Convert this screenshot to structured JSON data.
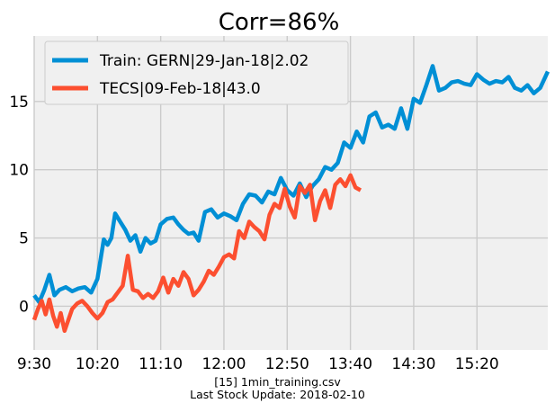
{
  "chart_data": {
    "type": "line",
    "title": "Corr=86%",
    "xlabel": "",
    "ylabel": "",
    "x_tick_labels": [
      "9:30",
      "10:20",
      "11:10",
      "12:00",
      "12:50",
      "13:40",
      "14:30",
      "15:20"
    ],
    "x_tick_minutes": [
      0,
      50,
      100,
      150,
      200,
      250,
      300,
      350
    ],
    "xlim_minutes": [
      0,
      406
    ],
    "y_ticks": [
      0,
      5,
      10,
      15
    ],
    "ylim": [
      -3.2,
      19.8
    ],
    "grid": true,
    "legend_position": "top-left",
    "series": [
      {
        "name": "Train: GERN|29-Jan-18|2.02",
        "color": "#008fd5",
        "x_minutes": [
          0,
          4,
          8,
          12,
          16,
          20,
          25,
          30,
          35,
          40,
          45,
          50,
          55,
          58,
          61,
          64,
          68,
          72,
          76,
          80,
          84,
          88,
          92,
          96,
          100,
          105,
          110,
          114,
          118,
          122,
          126,
          130,
          135,
          140,
          145,
          150,
          155,
          160,
          165,
          170,
          175,
          180,
          185,
          190,
          195,
          200,
          205,
          210,
          215,
          220,
          225,
          230,
          235,
          240,
          245,
          250,
          255,
          260,
          265,
          270,
          275,
          280,
          285,
          290,
          295,
          300,
          305,
          310,
          315,
          320,
          325,
          330,
          335,
          340,
          345,
          350,
          355,
          360,
          365,
          370,
          375,
          380,
          385,
          390,
          395,
          400,
          406
        ],
        "values": [
          0.8,
          0.3,
          1.2,
          2.3,
          0.8,
          1.2,
          1.4,
          1.1,
          1.3,
          1.4,
          1.0,
          2.0,
          4.9,
          4.5,
          5.0,
          6.8,
          6.2,
          5.6,
          4.8,
          5.2,
          4.0,
          5.0,
          4.6,
          4.8,
          6.0,
          6.4,
          6.5,
          6.0,
          5.6,
          5.3,
          5.4,
          4.8,
          6.9,
          7.1,
          6.5,
          6.8,
          6.6,
          6.3,
          7.5,
          8.2,
          8.1,
          7.6,
          8.4,
          8.2,
          9.4,
          8.5,
          8.1,
          9.0,
          8.0,
          8.8,
          9.3,
          10.2,
          10.0,
          10.5,
          12.0,
          11.6,
          12.8,
          12.0,
          13.9,
          14.2,
          13.1,
          13.3,
          13.0,
          14.5,
          13.0,
          15.2,
          14.9,
          16.2,
          17.6,
          15.8,
          16.0,
          16.4,
          16.5,
          16.3,
          16.2,
          17.0,
          16.6,
          16.3,
          16.5,
          16.4,
          16.8,
          16.0,
          15.8,
          16.2,
          15.6,
          16.0,
          17.2
        ]
      },
      {
        "name": "TECS|09-Feb-18|43.0",
        "color": "#fc4f30",
        "x_minutes": [
          0,
          3,
          6,
          9,
          12,
          15,
          18,
          21,
          24,
          27,
          30,
          34,
          38,
          42,
          46,
          50,
          54,
          58,
          62,
          66,
          70,
          74,
          78,
          82,
          86,
          90,
          94,
          98,
          102,
          106,
          110,
          114,
          118,
          122,
          126,
          130,
          134,
          138,
          142,
          146,
          150,
          154,
          158,
          162,
          166,
          170,
          174,
          178,
          182,
          186,
          190,
          194,
          198,
          202,
          206,
          210,
          214,
          218,
          222,
          226,
          230,
          234,
          238,
          242,
          246,
          250,
          254,
          258
        ],
        "values": [
          -1.0,
          -0.2,
          0.4,
          -0.6,
          0.5,
          -0.7,
          -1.5,
          -0.5,
          -1.8,
          -1.0,
          -0.2,
          0.2,
          0.4,
          0.0,
          -0.5,
          -0.9,
          -0.5,
          0.3,
          0.5,
          1.0,
          1.5,
          3.7,
          1.2,
          1.1,
          0.6,
          0.9,
          0.6,
          1.1,
          2.1,
          1.0,
          2.0,
          1.5,
          2.5,
          2.0,
          0.8,
          1.2,
          1.8,
          2.6,
          2.3,
          2.9,
          3.6,
          3.8,
          3.5,
          5.5,
          5.0,
          6.2,
          5.8,
          5.5,
          4.9,
          6.7,
          7.5,
          7.2,
          8.6,
          7.3,
          6.5,
          8.8,
          8.3,
          8.9,
          6.3,
          7.7,
          8.5,
          7.2,
          8.9,
          9.3,
          8.8,
          9.6,
          8.7,
          8.5
        ]
      }
    ],
    "caption": [
      "[15] 1min_training.csv",
      "Last Stock Update: 2018-02-10"
    ]
  }
}
